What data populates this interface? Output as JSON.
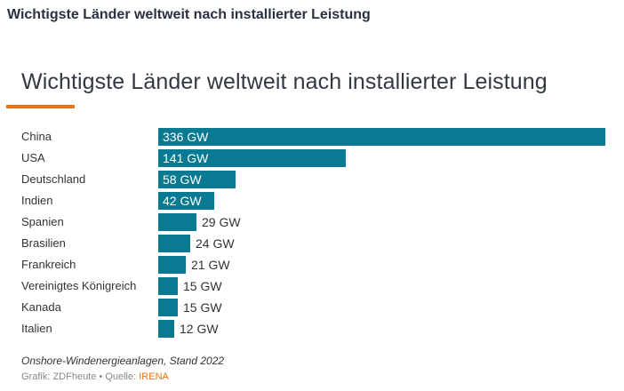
{
  "page": {
    "heading": "Wichtigste Länder weltweit nach installierter Leistung"
  },
  "chart_data": {
    "type": "bar",
    "orientation": "horizontal",
    "title": "Wichtigste Länder weltweit nach installierter Leistung",
    "subtitle": "Onshore-Windenergieanlagen, Stand 2022",
    "unit": "GW",
    "categories": [
      "China",
      "USA",
      "Deutschland",
      "Indien",
      "Spanien",
      "Brasilien",
      "Frankreich",
      "Vereinigtes Königreich",
      "Kanada",
      "Italien"
    ],
    "values": [
      336,
      141,
      58,
      42,
      29,
      24,
      21,
      15,
      15,
      12
    ],
    "value_labels": [
      "336 GW",
      "141 GW",
      "58 GW",
      "42 GW",
      "29 GW",
      "24 GW",
      "21 GW",
      "15 GW",
      "15 GW",
      "12 GW"
    ],
    "xlim": [
      0,
      336
    ],
    "grid": false,
    "legend": "none",
    "bar_color": "#0a7a93",
    "accent_color": "#e5731a"
  },
  "footer": {
    "credit_prefix": "Grafik: ZDFheute • Quelle: ",
    "source": "IRENA"
  }
}
